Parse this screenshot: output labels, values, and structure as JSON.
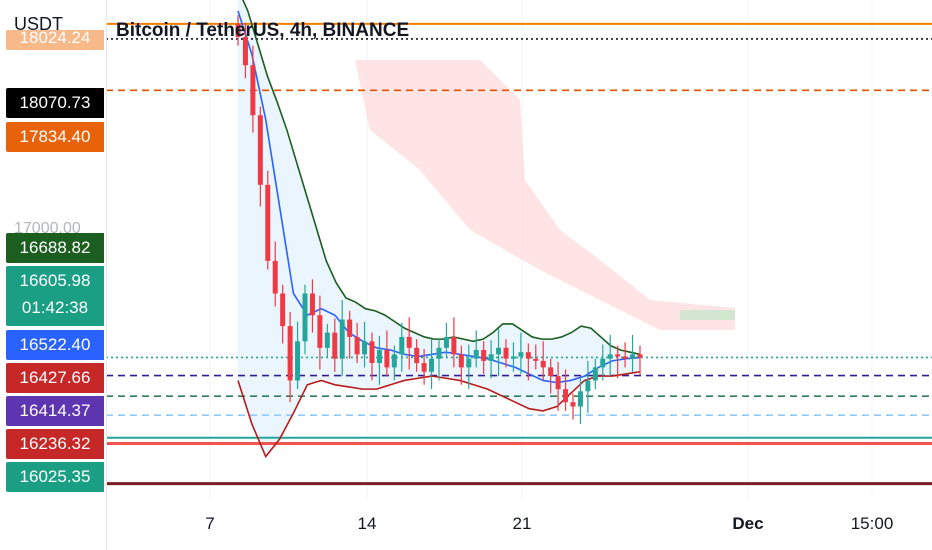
{
  "header": {
    "currency": "USDT",
    "title": "Bitcoin / TetherUS, 4h, BINANCE"
  },
  "colors": {
    "candle_up": "#26a69a",
    "candle_down": "#ef3a45",
    "basis": "#2962ff",
    "upper_band": "#1b5e20",
    "lower_band": "#b71c1c",
    "band_fill": "#e3f2fd",
    "cloud_fill": "#ffcdd2"
  },
  "price_tags": {
    "top_partial": "18024.24",
    "t18070": "18070.73",
    "t17834": "17834.40",
    "t16688": "16688.82",
    "t16605": "16605.98",
    "countdown": "01:42:38",
    "t16522": "16522.40",
    "t16427": "16427.66",
    "t16414": "16414.37",
    "t16236": "16236.32",
    "t16025": "16025.35",
    "partial_17000": "17000.00"
  },
  "x_axis": {
    "labels": [
      {
        "text": "7",
        "bold": false
      },
      {
        "text": "14",
        "bold": false
      },
      {
        "text": "21",
        "bold": false
      },
      {
        "text": "Dec",
        "bold": true
      },
      {
        "text": "15:00",
        "bold": false
      }
    ]
  },
  "chart_data": {
    "type": "candlestick",
    "title": "Bitcoin / TetherUS, 4h, BINANCE",
    "currency": "USDT",
    "ylim": [
      15950,
      18250
    ],
    "horizontal_levels": [
      {
        "price": 18140,
        "style": "solid",
        "color": "#f57c00"
      },
      {
        "price": 18070.73,
        "style": "dotted",
        "color": "#131722"
      },
      {
        "price": 17834.4,
        "style": "dashed",
        "color": "#e65100"
      },
      {
        "price": 16605.98,
        "style": "dotted",
        "color": "#26a69a"
      },
      {
        "price": 16522.4,
        "style": "dashed",
        "color": "#311b92"
      },
      {
        "price": 16427.66,
        "style": "dashed",
        "color": "#2e7d5b"
      },
      {
        "price": 16340,
        "style": "dashed",
        "color": "#90caf9"
      },
      {
        "price": 16236.32,
        "style": "solid",
        "color": "#26a69a"
      },
      {
        "price": 16210,
        "style": "solid",
        "color": "#ef5350"
      },
      {
        "price": 16025.35,
        "style": "solid",
        "color": "#7b1e24"
      }
    ],
    "candles_close": [
      18080,
      17950,
      17720,
      17400,
      17050,
      16900,
      16750,
      16500,
      16680,
      16900,
      16800,
      16650,
      16720,
      16600,
      16780,
      16700,
      16620,
      16680,
      16580,
      16640,
      16560,
      16620,
      16700,
      16650,
      16580,
      16540,
      16600,
      16650,
      16700,
      16620,
      16560,
      16600,
      16640,
      16590,
      16620,
      16650,
      16600,
      16610,
      16630,
      16600,
      16590,
      16560,
      16520,
      16460,
      16400,
      16380,
      16450,
      16500,
      16560,
      16600,
      16620,
      16610,
      16600,
      16620,
      16605
    ],
    "upper_band": [
      18300,
      18200,
      18050,
      17900,
      17780,
      17650,
      17500,
      17350,
      17200,
      17050,
      16950,
      16880,
      16860,
      16830,
      16820,
      16800,
      16770,
      16740,
      16720,
      16700,
      16690,
      16690,
      16700,
      16690,
      16680,
      16690,
      16720,
      16760,
      16760,
      16730,
      16700,
      16690,
      16690,
      16700,
      16720,
      16750,
      16740,
      16700,
      16660,
      16640,
      16630,
      16620
    ],
    "lower_band": [
      16500,
      16300,
      16150,
      16230,
      16350,
      16480,
      16500,
      16480,
      16470,
      16460,
      16460,
      16480,
      16500,
      16510,
      16520,
      16510,
      16500,
      16480,
      16460,
      16430,
      16400,
      16370,
      16360,
      16380,
      16440,
      16500,
      16520,
      16520,
      16530,
      16540
    ],
    "basis": [
      18200,
      18000,
      17700,
      17300,
      16900,
      16800,
      16830,
      16800,
      16720,
      16680,
      16650,
      16640,
      16620,
      16610,
      16620,
      16630,
      16620,
      16610,
      16600,
      16580,
      16560,
      16530,
      16500,
      16490,
      16500,
      16520,
      16560,
      16590,
      16600,
      16605
    ]
  }
}
